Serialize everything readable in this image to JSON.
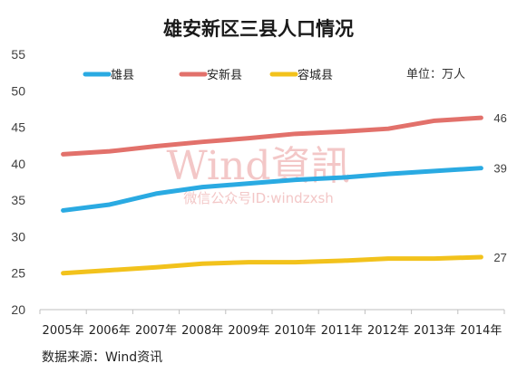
{
  "chart_data": {
    "type": "line",
    "title": "雄安新区三县人口情况",
    "unit": "单位：万人",
    "categories": [
      "2005年",
      "2006年",
      "2007年",
      "2008年",
      "2009年",
      "2010年",
      "2011年",
      "2012年",
      "2013年",
      "2014年"
    ],
    "ylim": [
      20,
      55
    ],
    "yticks": [
      "20",
      "25",
      "30",
      "35",
      "40",
      "45",
      "50",
      "55"
    ],
    "grid": false,
    "legend_position": "top",
    "series": [
      {
        "name": "雄县",
        "color": "#2aaae2",
        "values": [
          33.6,
          34.4,
          35.9,
          36.8,
          37.3,
          37.8,
          38.1,
          38.6,
          39.0,
          39.4
        ],
        "end_label": "39"
      },
      {
        "name": "安新县",
        "color": "#e2716b",
        "values": [
          41.3,
          41.7,
          42.4,
          43.0,
          43.5,
          44.1,
          44.4,
          44.8,
          45.9,
          46.3
        ],
        "end_label": "46"
      },
      {
        "name": "容城县",
        "color": "#f2c21c",
        "values": [
          25.0,
          25.4,
          25.8,
          26.3,
          26.5,
          26.5,
          26.7,
          27.0,
          27.0,
          27.2
        ],
        "end_label": "27"
      }
    ]
  },
  "watermark": {
    "main": "Wind資訊",
    "sub": "微信公众号ID:windzxsh"
  },
  "source": "数据来源：Wind资讯"
}
